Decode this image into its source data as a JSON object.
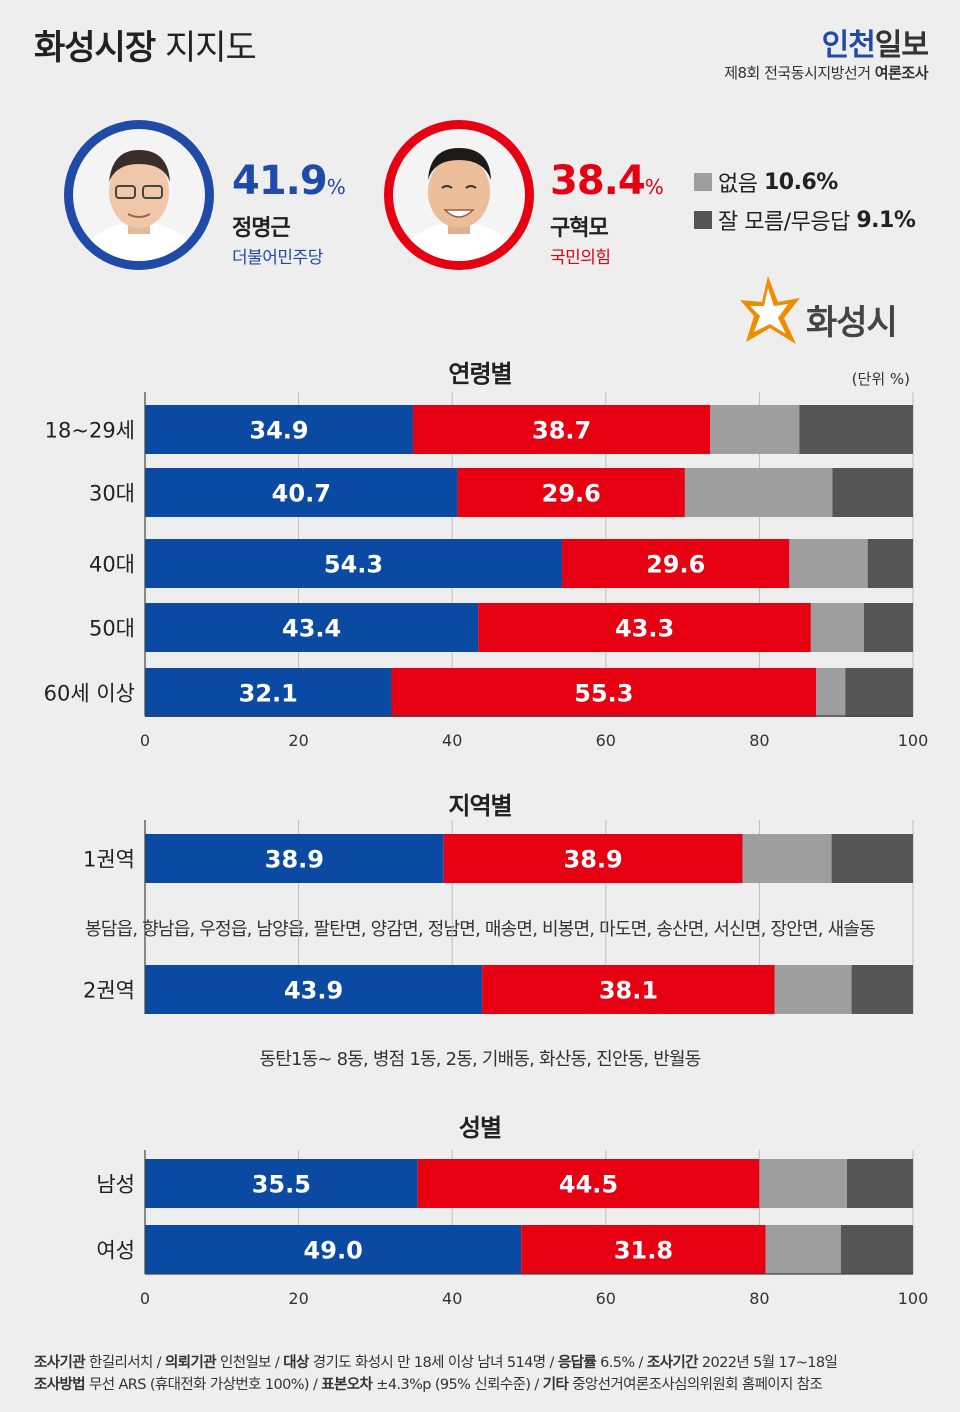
{
  "header": {
    "title_bold": "화성시장",
    "title_light": "지지도",
    "brand_part1": "인천",
    "brand_part2": "일보",
    "subtitle_prefix": "제8회 전국동시지방선거",
    "subtitle_bold": "여론조사"
  },
  "candidates": [
    {
      "name": "정명근",
      "party": "더불어민주당",
      "pct_value": "41.9",
      "pct_unit": "%",
      "color": "#1f4aa8"
    },
    {
      "name": "구혁모",
      "party": "국민의힘",
      "pct_value": "38.4",
      "pct_unit": "%",
      "color": "#e60012"
    }
  ],
  "others": [
    {
      "label": "없음",
      "value": "10.6%",
      "color": "#9e9e9e"
    },
    {
      "label": "잘 모름/무응답",
      "value": "9.1%",
      "color": "#555555"
    }
  ],
  "region_name": "화성시",
  "unit_label": "(단위 %)",
  "colors": {
    "dem": "#0a4aa3",
    "ppp": "#e60012",
    "none": "#9e9e9e",
    "unknown": "#555555"
  },
  "chart_data": [
    {
      "type": "bar",
      "stacked": true,
      "orientation": "horizontal",
      "title": "연령별",
      "categories": [
        "18~29세",
        "30대",
        "40대",
        "50대",
        "60세 이상"
      ],
      "series": [
        {
          "values": [
            34.9,
            40.7,
            54.3,
            43.4,
            32.1
          ]
        },
        {
          "values": [
            38.7,
            29.6,
            29.6,
            43.3,
            55.3
          ]
        },
        {
          "values": [
            11.6,
            19.2,
            10.2,
            6.9,
            3.8
          ]
        },
        {
          "values": [
            14.8,
            10.5,
            5.9,
            6.4,
            8.8
          ]
        }
      ],
      "xlim": [
        0,
        100
      ],
      "xticks": [
        "0",
        "20",
        "40",
        "60",
        "80",
        "100"
      ]
    },
    {
      "type": "bar",
      "stacked": true,
      "orientation": "horizontal",
      "title": "지역별",
      "categories": [
        "1권역",
        "2권역"
      ],
      "series": [
        {
          "values": [
            38.9,
            43.9
          ]
        },
        {
          "values": [
            38.9,
            38.1
          ]
        },
        {
          "values": [
            11.6,
            10.0
          ]
        },
        {
          "values": [
            10.6,
            8.0
          ]
        }
      ],
      "xlim": [
        0,
        100
      ],
      "notes": [
        "봉담읍, 향남읍, 우정읍, 남양읍, 팔탄면, 양감면, 정남면, 매송면, 비봉면, 마도면, 송산면, 서신면, 장안면, 새솔동",
        "동탄1동~ 8동, 병점 1동, 2동, 기배동, 화산동, 진안동, 반월동"
      ]
    },
    {
      "type": "bar",
      "stacked": true,
      "orientation": "horizontal",
      "title": "성별",
      "categories": [
        "남성",
        "여성"
      ],
      "series": [
        {
          "values": [
            35.5,
            49.0
          ]
        },
        {
          "values": [
            44.5,
            31.8
          ]
        },
        {
          "values": [
            11.4,
            9.8
          ]
        },
        {
          "values": [
            8.6,
            9.4
          ]
        }
      ],
      "xlim": [
        0,
        100
      ],
      "xticks": [
        "0",
        "20",
        "40",
        "60",
        "80",
        "100"
      ]
    }
  ],
  "footer": {
    "line1": [
      {
        "label": "조사기관",
        "value": "한길리서치"
      },
      {
        "label": "의뢰기관",
        "value": "인천일보"
      },
      {
        "label": "대상",
        "value": "경기도 화성시 만 18세 이상 남녀 514명"
      },
      {
        "label": "응답률",
        "value": "6.5%"
      },
      {
        "label": "조사기간",
        "value": "2022년 5월 17~18일"
      }
    ],
    "line2": [
      {
        "label": "조사방법",
        "value": "무선 ARS (휴대전화 가상번호 100%)"
      },
      {
        "label": "표본오차",
        "value": "±4.3%p (95% 신뢰수준)"
      },
      {
        "label": "기타",
        "value": "중앙선거여론조사심의위원회 홈페이지 참조"
      }
    ]
  }
}
